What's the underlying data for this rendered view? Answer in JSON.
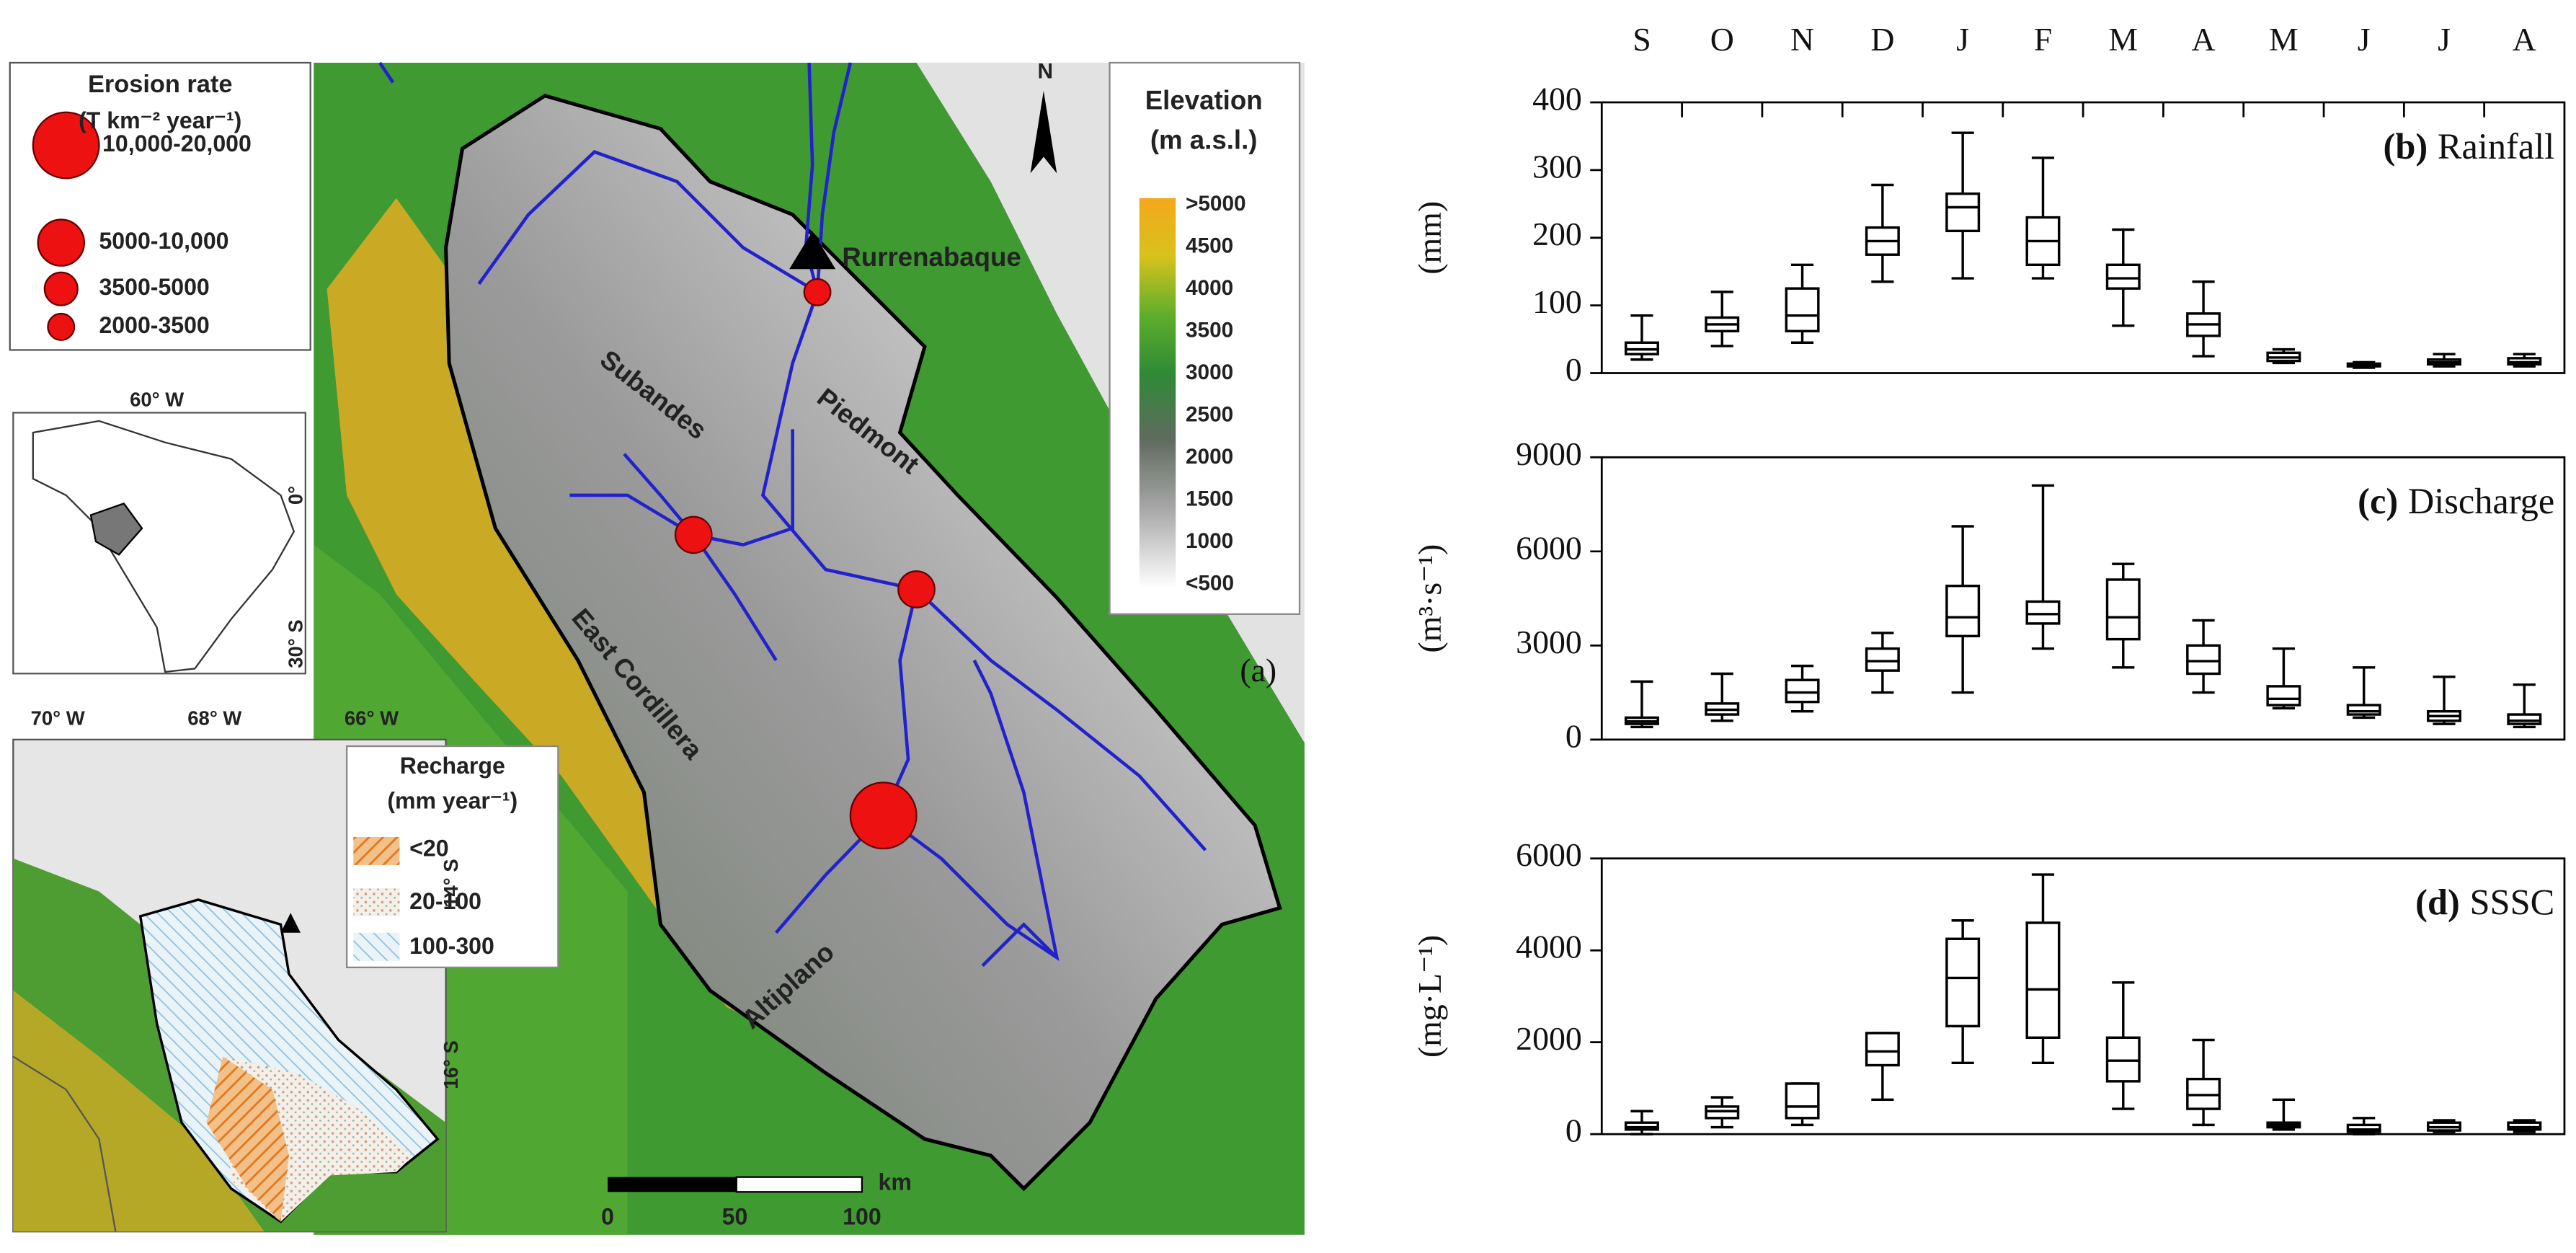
{
  "map": {
    "panel_label": "(a)",
    "erosion_legend": {
      "title": "Erosion rate",
      "unit": "(T km⁻² year⁻¹)",
      "classes": [
        "10,000-20,000",
        "5000-10,000",
        "3500-5000",
        "2000-3500"
      ]
    },
    "elevation_legend": {
      "title": "Elevation",
      "unit": "(m a.s.l.)",
      "labels": [
        ">5000",
        "4500",
        "4000",
        "3500",
        "3000",
        "2500",
        "2000",
        "1500",
        "1000",
        "<500"
      ]
    },
    "recharge_legend": {
      "title": "Recharge",
      "unit": "(mm year⁻¹)",
      "classes": [
        "<20",
        "20-100",
        "100-300"
      ]
    },
    "place_names": [
      "Rurrenabaque",
      "Subandes",
      "Piedmont",
      "East Cordillera",
      "Altiplano"
    ],
    "north": "N",
    "scale_bar": {
      "labels": [
        0,
        50,
        100
      ],
      "unit": "km"
    },
    "inset_coords": {
      "lon": [
        "60° W"
      ],
      "lat": [
        "0°",
        "30° S"
      ]
    },
    "recharge_coords": {
      "lon": [
        "70° W",
        "68° W",
        "66° W"
      ],
      "lat": [
        "14° S",
        "16° S"
      ]
    }
  },
  "chart_data": [
    {
      "type": "box",
      "panel": "(b)",
      "title": "Rainfall",
      "ylabel": "(mm)",
      "categories": [
        "S",
        "O",
        "N",
        "D",
        "J",
        "F",
        "M",
        "A",
        "M",
        "J",
        "J",
        "A"
      ],
      "min": [
        20,
        40,
        45,
        135,
        140,
        140,
        70,
        25,
        15,
        8,
        10,
        10
      ],
      "q1": [
        28,
        62,
        62,
        175,
        210,
        160,
        125,
        55,
        18,
        10,
        13,
        13
      ],
      "median": [
        35,
        72,
        85,
        195,
        245,
        195,
        140,
        72,
        23,
        12,
        16,
        16
      ],
      "q3": [
        45,
        82,
        125,
        215,
        265,
        230,
        160,
        88,
        30,
        14,
        20,
        22
      ],
      "max": [
        85,
        120,
        160,
        278,
        355,
        318,
        212,
        135,
        35,
        16,
        28,
        28
      ],
      "ylim": [
        0,
        400
      ],
      "yticks": [
        0,
        100,
        200,
        300,
        400
      ]
    },
    {
      "type": "box",
      "panel": "(c)",
      "title": "Discharge",
      "ylabel": "(m³·s⁻¹)",
      "min": [
        400,
        600,
        900,
        1500,
        1500,
        2900,
        2300,
        1500,
        1000,
        700,
        500,
        400
      ],
      "q1": [
        500,
        800,
        1200,
        2200,
        3300,
        3700,
        3200,
        2100,
        1100,
        800,
        600,
        500
      ],
      "median": [
        580,
        950,
        1500,
        2500,
        3900,
        4000,
        3900,
        2500,
        1300,
        900,
        750,
        600
      ],
      "q3": [
        700,
        1150,
        1900,
        2900,
        4900,
        4400,
        5100,
        3000,
        1700,
        1100,
        900,
        800
      ],
      "max": [
        1850,
        2100,
        2350,
        3400,
        6800,
        8100,
        5600,
        3800,
        2900,
        2300,
        2000,
        1750
      ],
      "ylim": [
        0,
        9000
      ],
      "yticks": [
        0,
        3000,
        6000,
        9000
      ]
    },
    {
      "type": "box",
      "panel": "(d)",
      "title": "SSSC",
      "ylabel": "(mg·L⁻¹)",
      "min": [
        0,
        150,
        200,
        750,
        1550,
        1550,
        550,
        200,
        100,
        0,
        50,
        50
      ],
      "q1": [
        100,
        350,
        350,
        1500,
        2350,
        2100,
        1150,
        550,
        150,
        50,
        80,
        100
      ],
      "median": [
        150,
        500,
        600,
        1800,
        3400,
        3150,
        1600,
        850,
        200,
        100,
        150,
        150
      ],
      "q3": [
        250,
        600,
        1100,
        2200,
        4250,
        4600,
        2100,
        1200,
        250,
        200,
        250,
        250
      ],
      "max": [
        500,
        800,
        1100,
        2200,
        4650,
        5650,
        3300,
        2050,
        750,
        350,
        300,
        300
      ],
      "ylim": [
        0,
        6000
      ],
      "yticks": [
        0,
        2000,
        4000,
        6000
      ]
    }
  ]
}
